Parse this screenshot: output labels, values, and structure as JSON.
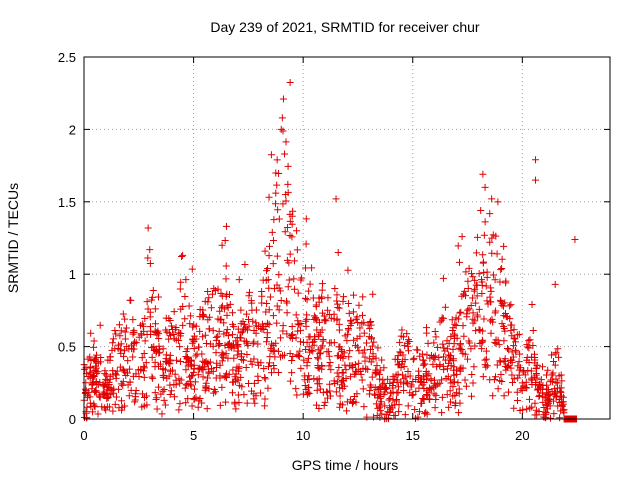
{
  "chart_data": {
    "type": "scatter",
    "title": "Day 239 of 2021, SRMTID for receiver chur",
    "xlabel": "GPS time / hours",
    "ylabel": "SRMTID / TECUs",
    "xlim": [
      0,
      24
    ],
    "ylim": [
      0,
      2.5
    ],
    "xticks": [
      0,
      5,
      10,
      15,
      20
    ],
    "xtick_labels": [
      "0",
      "5",
      "10",
      "15",
      "20"
    ],
    "yticks": [
      0,
      0.5,
      1,
      1.5,
      2,
      2.5
    ],
    "ytick_labels": [
      "0",
      "0.5",
      "1",
      "1.5",
      "2",
      "2.5"
    ],
    "grid": true,
    "marker": "plus",
    "color": "#e00000",
    "series": [
      {
        "name": "SRMTID",
        "envelope": [
          {
            "x": 0.0,
            "y": 0.2
          },
          {
            "x": 0.5,
            "y": 0.3
          },
          {
            "x": 1.0,
            "y": 0.18
          },
          {
            "x": 1.5,
            "y": 0.35
          },
          {
            "x": 2.0,
            "y": 0.4
          },
          {
            "x": 2.5,
            "y": 0.45
          },
          {
            "x": 3.0,
            "y": 0.55
          },
          {
            "x": 3.5,
            "y": 0.35
          },
          {
            "x": 4.0,
            "y": 0.45
          },
          {
            "x": 4.5,
            "y": 0.55
          },
          {
            "x": 5.0,
            "y": 0.45
          },
          {
            "x": 5.5,
            "y": 0.5
          },
          {
            "x": 6.0,
            "y": 0.55
          },
          {
            "x": 6.5,
            "y": 0.55
          },
          {
            "x": 7.0,
            "y": 0.4
          },
          {
            "x": 7.5,
            "y": 0.6
          },
          {
            "x": 8.0,
            "y": 0.55
          },
          {
            "x": 8.5,
            "y": 0.75
          },
          {
            "x": 9.0,
            "y": 1.4
          },
          {
            "x": 9.5,
            "y": 0.95
          },
          {
            "x": 10.0,
            "y": 0.6
          },
          {
            "x": 10.5,
            "y": 0.5
          },
          {
            "x": 11.0,
            "y": 0.55
          },
          {
            "x": 11.5,
            "y": 0.55
          },
          {
            "x": 12.0,
            "y": 0.5
          },
          {
            "x": 12.5,
            "y": 0.5
          },
          {
            "x": 13.0,
            "y": 0.45
          },
          {
            "x": 13.5,
            "y": 0.25
          },
          {
            "x": 14.0,
            "y": 0.12
          },
          {
            "x": 14.5,
            "y": 0.35
          },
          {
            "x": 15.0,
            "y": 0.3
          },
          {
            "x": 15.5,
            "y": 0.25
          },
          {
            "x": 16.0,
            "y": 0.35
          },
          {
            "x": 16.5,
            "y": 0.4
          },
          {
            "x": 17.0,
            "y": 0.45
          },
          {
            "x": 17.5,
            "y": 0.65
          },
          {
            "x": 18.0,
            "y": 0.8
          },
          {
            "x": 18.5,
            "y": 0.85
          },
          {
            "x": 19.0,
            "y": 0.7
          },
          {
            "x": 19.5,
            "y": 0.5
          },
          {
            "x": 20.0,
            "y": 0.25
          },
          {
            "x": 20.5,
            "y": 0.35
          },
          {
            "x": 21.0,
            "y": 0.1
          },
          {
            "x": 21.5,
            "y": 0.35
          },
          {
            "x": 22.0,
            "y": 0.0
          },
          {
            "x": 22.5,
            "y": 0.0
          }
        ],
        "highlights": [
          {
            "x": 9.1,
            "y": 2.21
          },
          {
            "x": 9.05,
            "y": 2.08
          },
          {
            "x": 9.0,
            "y": 2.0
          },
          {
            "x": 9.15,
            "y": 1.83
          },
          {
            "x": 9.3,
            "y": 1.62
          },
          {
            "x": 9.2,
            "y": 1.55
          },
          {
            "x": 9.5,
            "y": 1.4
          },
          {
            "x": 9.7,
            "y": 1.3
          },
          {
            "x": 11.5,
            "y": 1.52
          },
          {
            "x": 11.6,
            "y": 1.15
          },
          {
            "x": 18.2,
            "y": 1.69
          },
          {
            "x": 18.3,
            "y": 1.6
          },
          {
            "x": 18.6,
            "y": 1.52
          },
          {
            "x": 18.1,
            "y": 1.44
          },
          {
            "x": 20.6,
            "y": 1.79
          },
          {
            "x": 20.6,
            "y": 1.65
          },
          {
            "x": 22.4,
            "y": 1.24
          },
          {
            "x": 3.0,
            "y": 1.17
          },
          {
            "x": 4.5,
            "y": 1.13
          },
          {
            "x": 6.5,
            "y": 1.33
          },
          {
            "x": 6.3,
            "y": 1.2
          },
          {
            "x": 2.1,
            "y": 0.82
          },
          {
            "x": 21.5,
            "y": 0.93
          }
        ]
      }
    ]
  }
}
